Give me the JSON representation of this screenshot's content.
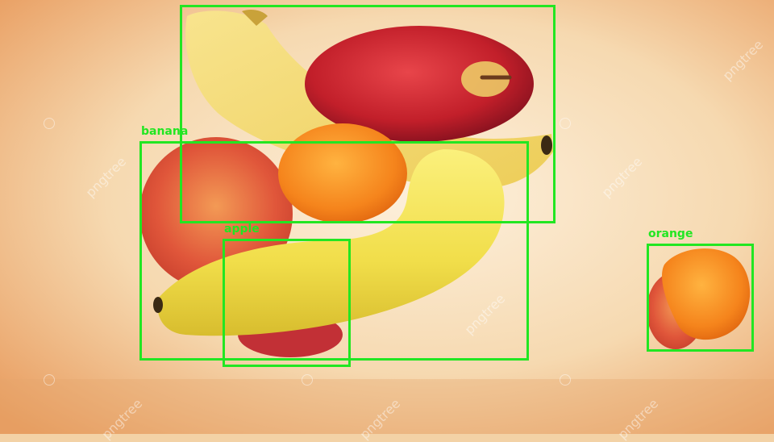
{
  "detections": [
    {
      "label": ""
    },
    {
      "label": "banana"
    },
    {
      "label": "apple"
    },
    {
      "label": "orange"
    }
  ],
  "watermark": "pngtree",
  "colors": {
    "box": "#22e622",
    "background": "#f3d2a6",
    "apple_red": "#c8262c",
    "banana_yellow": "#f4e15a",
    "orange": "#f58a1f"
  }
}
